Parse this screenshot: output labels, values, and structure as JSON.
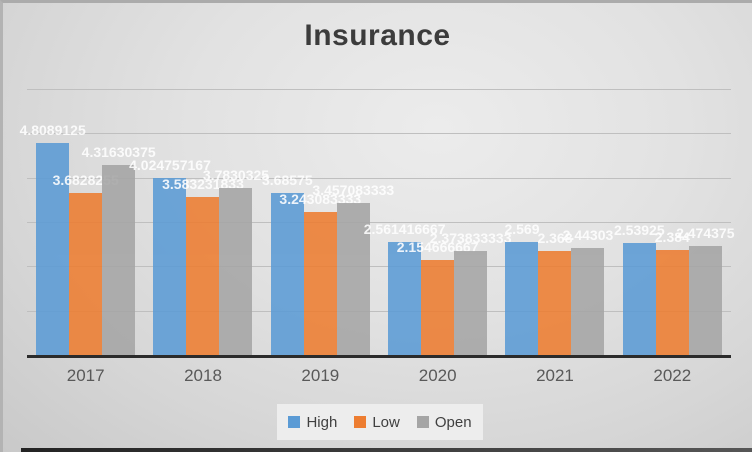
{
  "chart_data": {
    "type": "bar",
    "title": "Insurance",
    "categories": [
      "2017",
      "2018",
      "2019",
      "2020",
      "2021",
      "2022"
    ],
    "series": [
      {
        "name": "High",
        "color": "#5B9BD5",
        "values": [
          4.8089125,
          4.024757167,
          3.68575,
          2.561416667,
          2.569,
          2.53925
        ],
        "labels": [
          "4.8089125",
          "4.024757167",
          "3.68575",
          "2.561416667",
          "2.569",
          "2.53925"
        ]
      },
      {
        "name": "Low",
        "color": "#ED7D31",
        "values": [
          3.6828255,
          3.583231833,
          3.243083333,
          2.154666667,
          2.368,
          2.384
        ],
        "labels": [
          "3.6828255",
          "3.583231833",
          "3.243083333",
          "2.154666667",
          "2.368",
          "2.384"
        ]
      },
      {
        "name": "Open",
        "color": "#A5A5A5",
        "values": [
          4.31630375,
          3.7830325,
          3.457083333,
          2.373833333,
          2.44303,
          2.474375
        ],
        "labels": [
          "4.31630375",
          "3.7830325",
          "3.457083333",
          "2.373833333",
          "2.44303",
          "2.474375"
        ]
      }
    ],
    "ylim": [
      0,
      6
    ],
    "gridline_step": 1,
    "grid": true,
    "y_axis_labels_visible": false,
    "data_labels_style": "outside-end white bold",
    "legend_position": "bottom",
    "xlabel": "",
    "ylabel": ""
  },
  "colors": {
    "title_text": "#3C3C3C",
    "category_text": "#595959",
    "legend_text": "#404040",
    "data_label_text": "#FFFFFF",
    "gridline": "#BFBFBF",
    "axis_line": "#2B2B2B",
    "background_light": "#ECECEC",
    "background_dark": "#C9C9C9"
  }
}
